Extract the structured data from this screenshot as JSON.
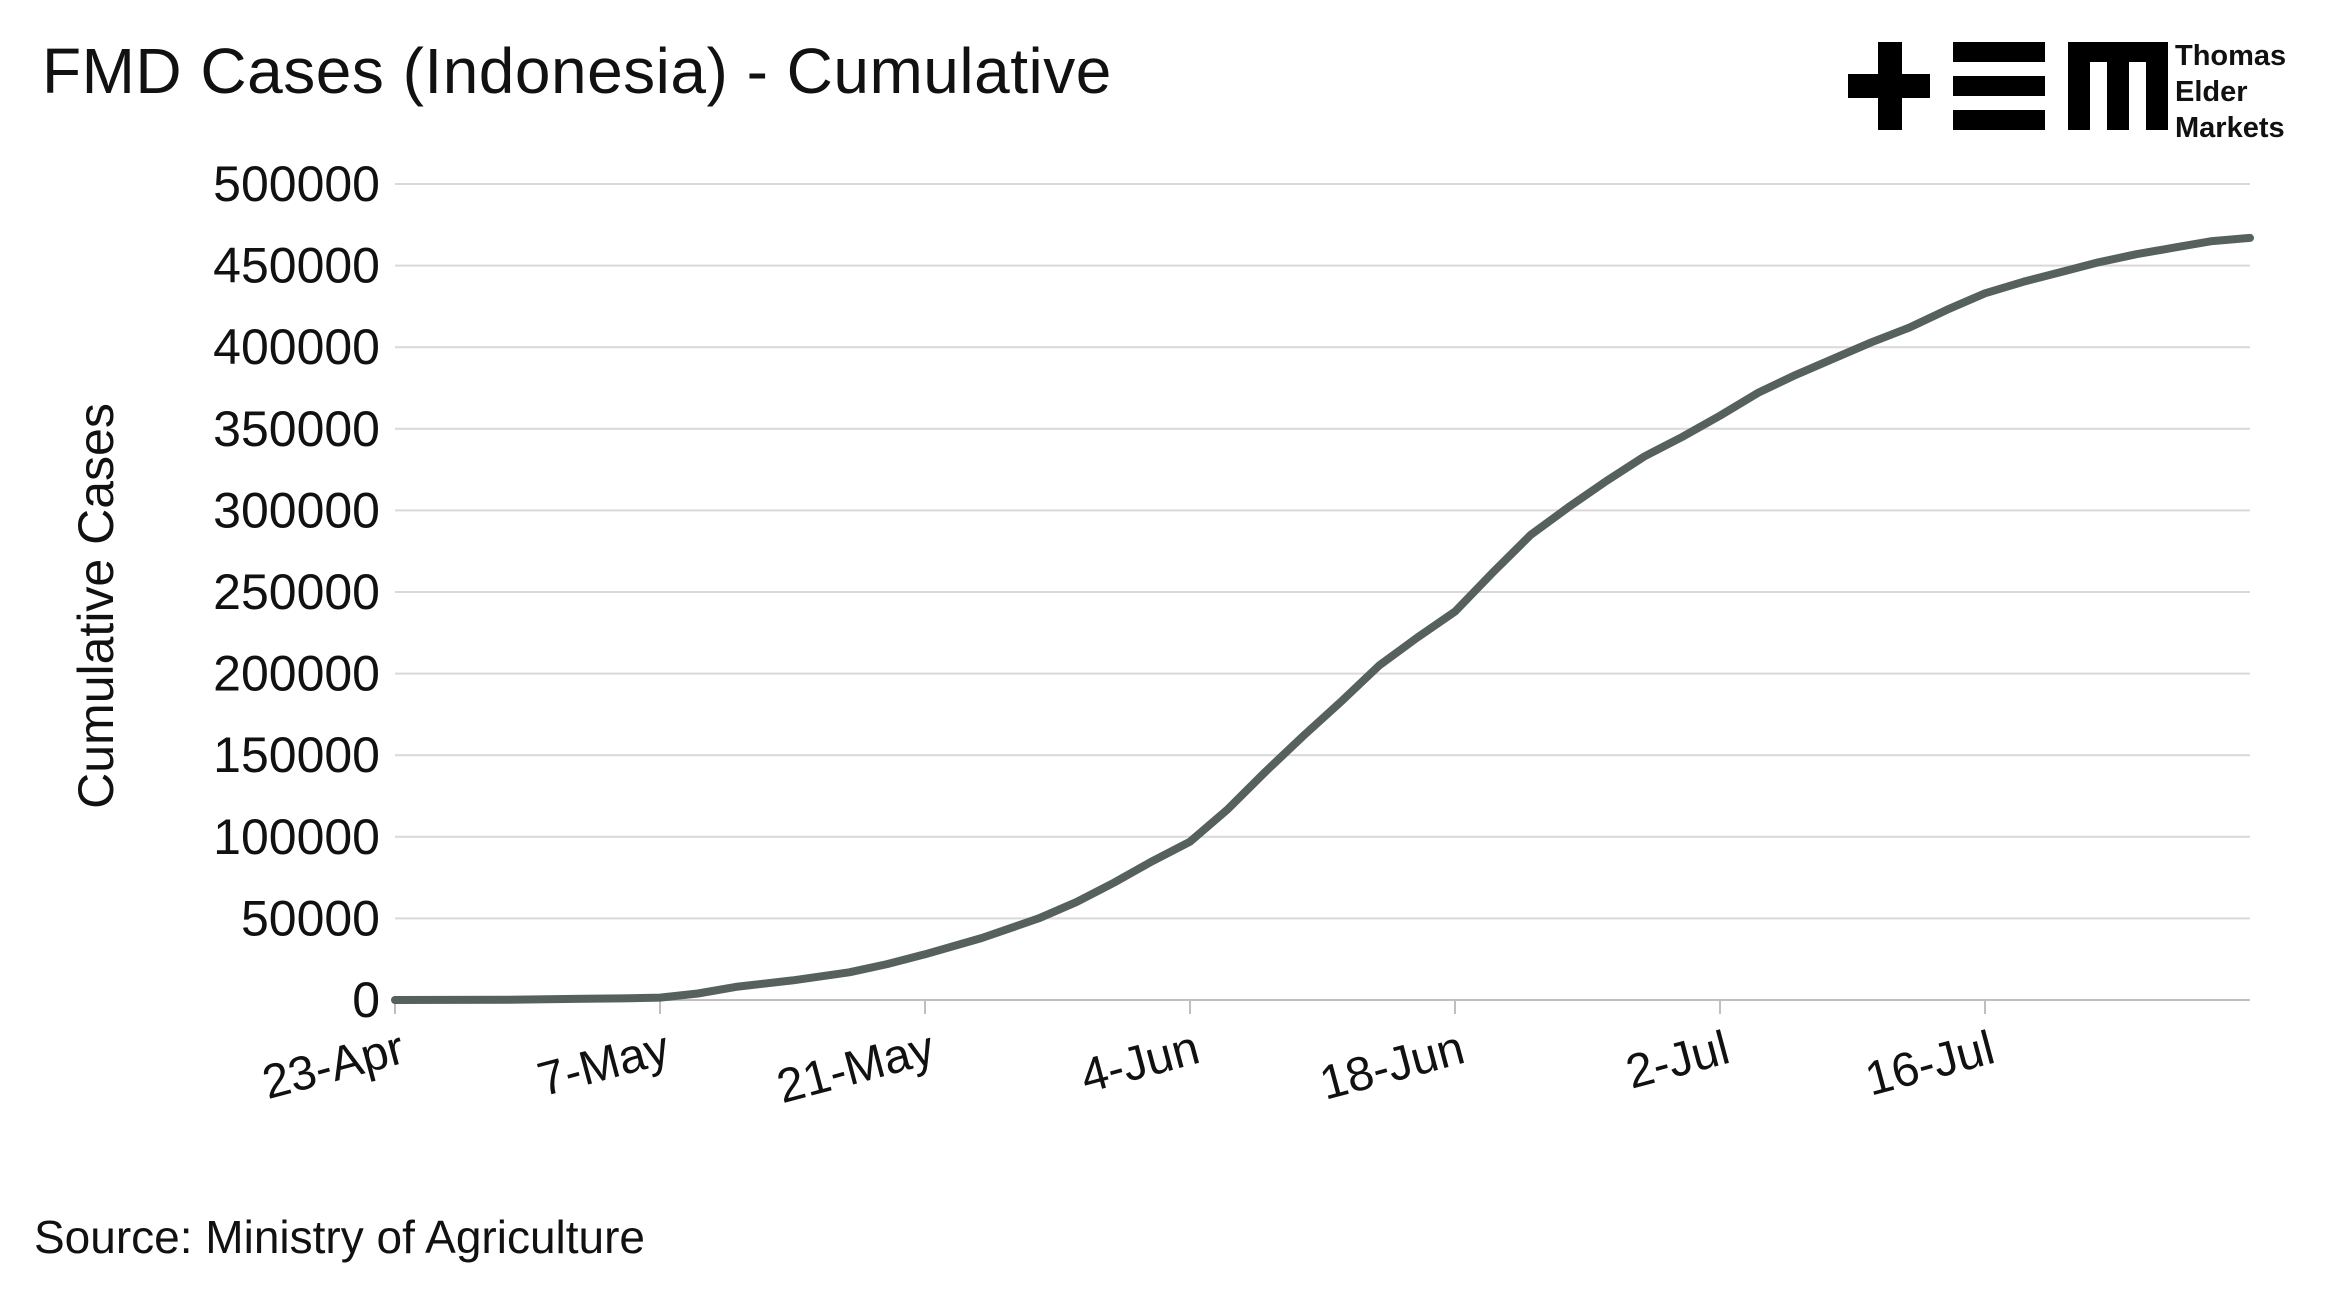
{
  "header": {
    "title": "FMD Cases (Indonesia) - Cumulative"
  },
  "brand": {
    "logo_icon": "tem-logo-icon",
    "lines": [
      "Thomas",
      "Elder",
      "Markets"
    ]
  },
  "footer": {
    "source": "Source: Ministry of Agriculture"
  },
  "colors": {
    "line": "#56615e",
    "grid": "#d9d9d9",
    "axis": "#bfbfbf",
    "text": "#111111"
  },
  "chart_data": {
    "type": "line",
    "ylabel": "Cumulative Cases",
    "ylim": [
      0,
      500000
    ],
    "yticks": [
      "0",
      "50000",
      "100000",
      "150000",
      "200000",
      "250000",
      "300000",
      "350000",
      "400000",
      "450000",
      "500000"
    ],
    "xlim": [
      "2022-04-23",
      "2022-07-30"
    ],
    "xticks": [
      {
        "date": "2022-04-23",
        "label": "23-Apr"
      },
      {
        "date": "2022-05-07",
        "label": "7-May"
      },
      {
        "date": "2022-05-21",
        "label": "21-May"
      },
      {
        "date": "2022-06-04",
        "label": "4-Jun"
      },
      {
        "date": "2022-06-18",
        "label": "18-Jun"
      },
      {
        "date": "2022-07-02",
        "label": "2-Jul"
      },
      {
        "date": "2022-07-16",
        "label": "16-Jul"
      }
    ],
    "grid": true,
    "series": [
      {
        "x": [
          "2022-04-23",
          "2022-04-29",
          "2022-05-03",
          "2022-05-05",
          "2022-05-07",
          "2022-05-09",
          "2022-05-11",
          "2022-05-14",
          "2022-05-17",
          "2022-05-19",
          "2022-05-21",
          "2022-05-24",
          "2022-05-27",
          "2022-05-29",
          "2022-05-31",
          "2022-06-02",
          "2022-06-04",
          "2022-06-06",
          "2022-06-08",
          "2022-06-10",
          "2022-06-12",
          "2022-06-14",
          "2022-06-16",
          "2022-06-18",
          "2022-06-20",
          "2022-06-22",
          "2022-06-24",
          "2022-06-26",
          "2022-06-28",
          "2022-06-30",
          "2022-07-02",
          "2022-07-04",
          "2022-07-06",
          "2022-07-08",
          "2022-07-10",
          "2022-07-12",
          "2022-07-14",
          "2022-07-16",
          "2022-07-18",
          "2022-07-20",
          "2022-07-22",
          "2022-07-24",
          "2022-07-26",
          "2022-07-28",
          "2022-07-30"
        ],
        "y": [
          0,
          200,
          800,
          1000,
          1500,
          4000,
          8000,
          12000,
          17000,
          22000,
          28000,
          38000,
          50000,
          60000,
          72000,
          85000,
          97000,
          117000,
          140000,
          162000,
          183000,
          205000,
          222000,
          238000,
          262000,
          285000,
          302000,
          318000,
          333000,
          345000,
          358000,
          372000,
          383000,
          393000,
          403000,
          412000,
          423000,
          433000,
          440000,
          446000,
          452000,
          457000,
          461000,
          465000,
          467000
        ]
      }
    ]
  }
}
